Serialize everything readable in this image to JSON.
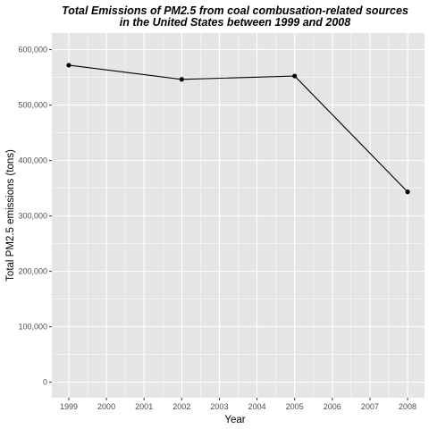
{
  "chart_data": {
    "type": "line",
    "title_lines": [
      "Total Emissions of PM2.5 from coal combusation-related sources",
      "in the United States between 1999 and 2008"
    ],
    "xlabel": "Year",
    "ylabel": "Total PM2.5 emissions (tons)",
    "x_ticks": [
      1999,
      2000,
      2001,
      2002,
      2003,
      2004,
      2005,
      2006,
      2007,
      2008
    ],
    "y_ticks": [
      0,
      100000,
      200000,
      300000,
      400000,
      500000,
      600000
    ],
    "y_tick_labels": [
      "0",
      "100,000",
      "200,000",
      "300,000",
      "400,000",
      "500,000",
      "600,000"
    ],
    "xlim": [
      1998.55,
      2008.45
    ],
    "ylim": [
      -28000,
      630000
    ],
    "grid": true,
    "series": [
      {
        "x": [
          1999,
          2002,
          2005,
          2008
        ],
        "y": [
          572000,
          546500,
          552500,
          343500
        ]
      }
    ],
    "colors": {
      "panel_background": "#e5e5e5",
      "grid_major": "#ffffff",
      "line": "#000000"
    }
  }
}
